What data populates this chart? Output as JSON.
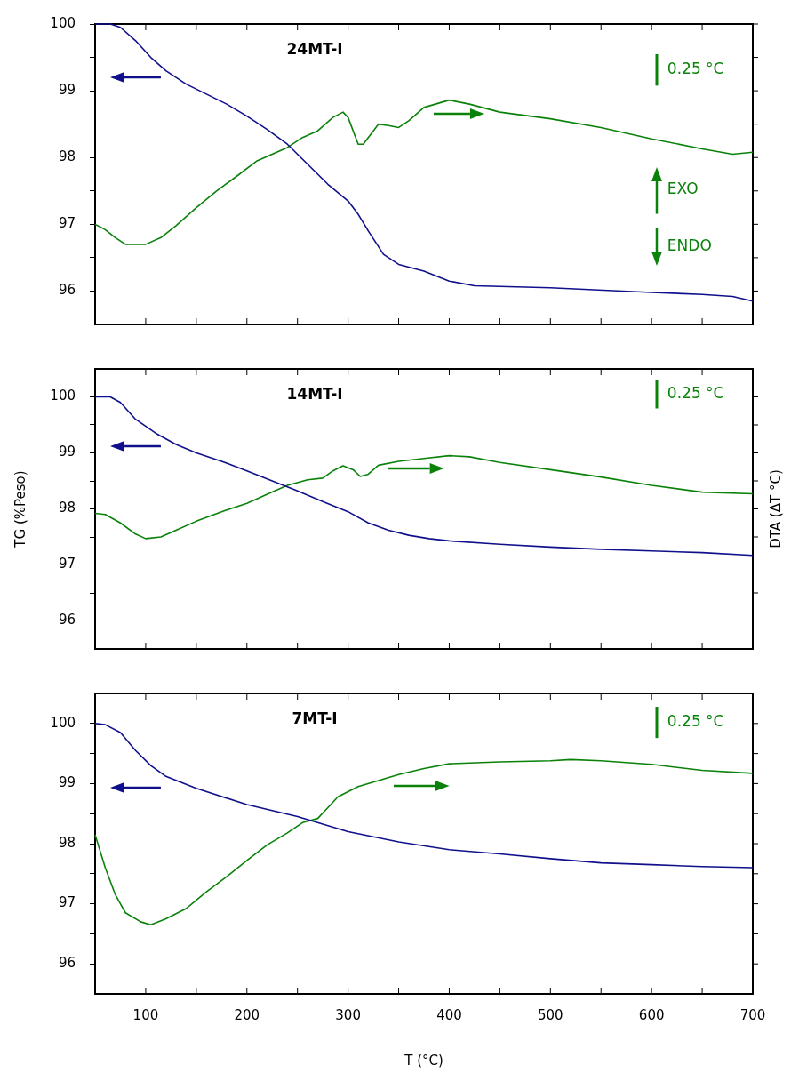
{
  "chart_data": [
    {
      "type": "line",
      "title": "24MT-I",
      "annotations": [
        "0.25 °C",
        "EXO",
        "ENDO"
      ],
      "tick_labels": "y",
      "grid": false,
      "legend": false,
      "marker": "none",
      "line_style": "solid",
      "xlim": [
        50,
        700
      ],
      "xticks": [
        {
          "value": 50,
          "label": null
        },
        100,
        {
          "value": 150,
          "label": null
        },
        200,
        {
          "value": 250,
          "label": null
        },
        300,
        {
          "value": 350,
          "label": null
        },
        400,
        {
          "value": 450,
          "label": null
        },
        500,
        {
          "value": 550,
          "label": null
        },
        600,
        {
          "value": 650,
          "label": null
        },
        700
      ],
      "ylim": [
        95.5,
        100
      ],
      "yticks": [
        96,
        {
          "value": 96.5,
          "label": null
        },
        97,
        {
          "value": 97.5,
          "label": null
        },
        98,
        {
          "value": 98.5,
          "label": null
        },
        99,
        {
          "value": 99.5,
          "label": null
        },
        100
      ],
      "series": [
        {
          "color": "#10108c",
          "x": [
            50,
            65,
            75,
            90,
            105,
            120,
            140,
            160,
            180,
            200,
            220,
            240,
            260,
            280,
            300,
            310,
            320,
            335,
            350,
            375,
            400,
            425,
            500,
            600,
            650,
            680,
            700
          ],
          "values": [
            100,
            100,
            99.95,
            99.75,
            99.5,
            99.3,
            99.1,
            98.95,
            98.8,
            98.62,
            98.42,
            98.2,
            97.9,
            97.6,
            97.35,
            97.15,
            96.9,
            96.55,
            96.4,
            96.3,
            96.15,
            96.08,
            96.05,
            95.98,
            95.95,
            95.92,
            95.85
          ]
        },
        {
          "color": "#0a820a",
          "x": [
            50,
            60,
            70,
            80,
            100,
            115,
            130,
            150,
            170,
            190,
            210,
            225,
            240,
            255,
            270,
            285,
            295,
            300,
            310,
            315,
            320,
            330,
            340,
            350,
            360,
            375,
            400,
            420,
            450,
            500,
            550,
            600,
            650,
            680,
            700
          ],
          "values": [
            97.0,
            96.92,
            96.8,
            96.7,
            96.7,
            96.8,
            96.98,
            97.25,
            97.5,
            97.72,
            97.95,
            98.05,
            98.15,
            98.3,
            98.4,
            98.6,
            98.68,
            98.6,
            98.2,
            98.2,
            98.3,
            98.5,
            98.48,
            98.45,
            98.55,
            98.75,
            98.86,
            98.8,
            98.68,
            98.58,
            98.45,
            98.28,
            98.13,
            98.05,
            98.08
          ]
        }
      ]
    },
    {
      "type": "line",
      "title": "14MT-I",
      "ylabel": "TG (%Peso)",
      "y2label": "DTA (ΔT °C)",
      "annotations": [
        "0.25 °C"
      ],
      "tick_labels": "y",
      "grid": false,
      "legend": false,
      "marker": "none",
      "line_style": "solid",
      "xlim": [
        50,
        700
      ],
      "xticks": [
        {
          "value": 50,
          "label": null
        },
        100,
        {
          "value": 150,
          "label": null
        },
        200,
        {
          "value": 250,
          "label": null
        },
        300,
        {
          "value": 350,
          "label": null
        },
        400,
        {
          "value": 450,
          "label": null
        },
        500,
        {
          "value": 550,
          "label": null
        },
        600,
        {
          "value": 650,
          "label": null
        },
        700
      ],
      "ylim": [
        95.5,
        100.5
      ],
      "yticks": [
        96,
        {
          "value": 96.5,
          "label": null
        },
        97,
        {
          "value": 97.5,
          "label": null
        },
        98,
        {
          "value": 98.5,
          "label": null
        },
        99,
        {
          "value": 99.5,
          "label": null
        },
        100
      ],
      "series": [
        {
          "color": "#10108c",
          "x": [
            50,
            65,
            75,
            90,
            110,
            130,
            150,
            175,
            200,
            225,
            250,
            275,
            300,
            320,
            340,
            360,
            380,
            400,
            450,
            500,
            550,
            600,
            650,
            700
          ],
          "values": [
            100,
            100,
            99.9,
            99.6,
            99.35,
            99.15,
            99.0,
            98.85,
            98.68,
            98.5,
            98.32,
            98.13,
            97.95,
            97.75,
            97.62,
            97.53,
            97.47,
            97.43,
            97.37,
            97.32,
            97.28,
            97.25,
            97.22,
            97.17
          ]
        },
        {
          "color": "#0a820a",
          "x": [
            50,
            60,
            75,
            90,
            100,
            115,
            130,
            150,
            175,
            200,
            225,
            240,
            260,
            275,
            285,
            295,
            305,
            312,
            320,
            330,
            350,
            375,
            400,
            420,
            450,
            500,
            550,
            600,
            650,
            700
          ],
          "values": [
            97.92,
            97.9,
            97.75,
            97.55,
            97.47,
            97.5,
            97.62,
            97.78,
            97.95,
            98.1,
            98.3,
            98.42,
            98.52,
            98.55,
            98.68,
            98.77,
            98.7,
            98.58,
            98.62,
            98.78,
            98.85,
            98.9,
            98.95,
            98.93,
            98.83,
            98.7,
            98.57,
            98.42,
            98.3,
            98.27
          ]
        }
      ]
    },
    {
      "type": "line",
      "title": "7MT-I",
      "xlabel": "T (°C)",
      "annotations": [
        "0.25 °C"
      ],
      "grid": false,
      "legend": false,
      "marker": "none",
      "line_style": "solid",
      "xlim": [
        50,
        700
      ],
      "xticks": [
        {
          "value": 50,
          "label": null
        },
        100,
        {
          "value": 150,
          "label": null
        },
        200,
        {
          "value": 250,
          "label": null
        },
        300,
        {
          "value": 350,
          "label": null
        },
        400,
        {
          "value": 450,
          "label": null
        },
        500,
        {
          "value": 550,
          "label": null
        },
        600,
        {
          "value": 650,
          "label": null
        },
        700
      ],
      "ylim": [
        95.5,
        100.5
      ],
      "yticks": [
        96,
        {
          "value": 96.5,
          "label": null
        },
        97,
        {
          "value": 97.5,
          "label": null
        },
        98,
        {
          "value": 98.5,
          "label": null
        },
        99,
        {
          "value": 99.5,
          "label": null
        },
        100
      ],
      "series": [
        {
          "color": "#10108c",
          "x": [
            50,
            60,
            75,
            90,
            105,
            120,
            150,
            200,
            250,
            300,
            350,
            400,
            450,
            500,
            550,
            600,
            650,
            700
          ],
          "values": [
            100,
            99.98,
            99.85,
            99.55,
            99.3,
            99.12,
            98.92,
            98.65,
            98.45,
            98.2,
            98.03,
            97.9,
            97.83,
            97.75,
            97.68,
            97.65,
            97.62,
            97.6
          ]
        },
        {
          "color": "#0a820a",
          "x": [
            50,
            60,
            70,
            80,
            95,
            105,
            120,
            140,
            160,
            180,
            200,
            220,
            240,
            255,
            270,
            280,
            290,
            310,
            330,
            350,
            375,
            400,
            450,
            500,
            520,
            550,
            600,
            650,
            700
          ],
          "values": [
            98.15,
            97.6,
            97.15,
            96.85,
            96.7,
            96.65,
            96.75,
            96.92,
            97.2,
            97.45,
            97.72,
            97.98,
            98.18,
            98.35,
            98.42,
            98.6,
            98.78,
            98.95,
            99.05,
            99.15,
            99.25,
            99.33,
            99.36,
            99.38,
            99.4,
            99.38,
            99.32,
            99.22,
            99.17
          ]
        }
      ]
    }
  ]
}
